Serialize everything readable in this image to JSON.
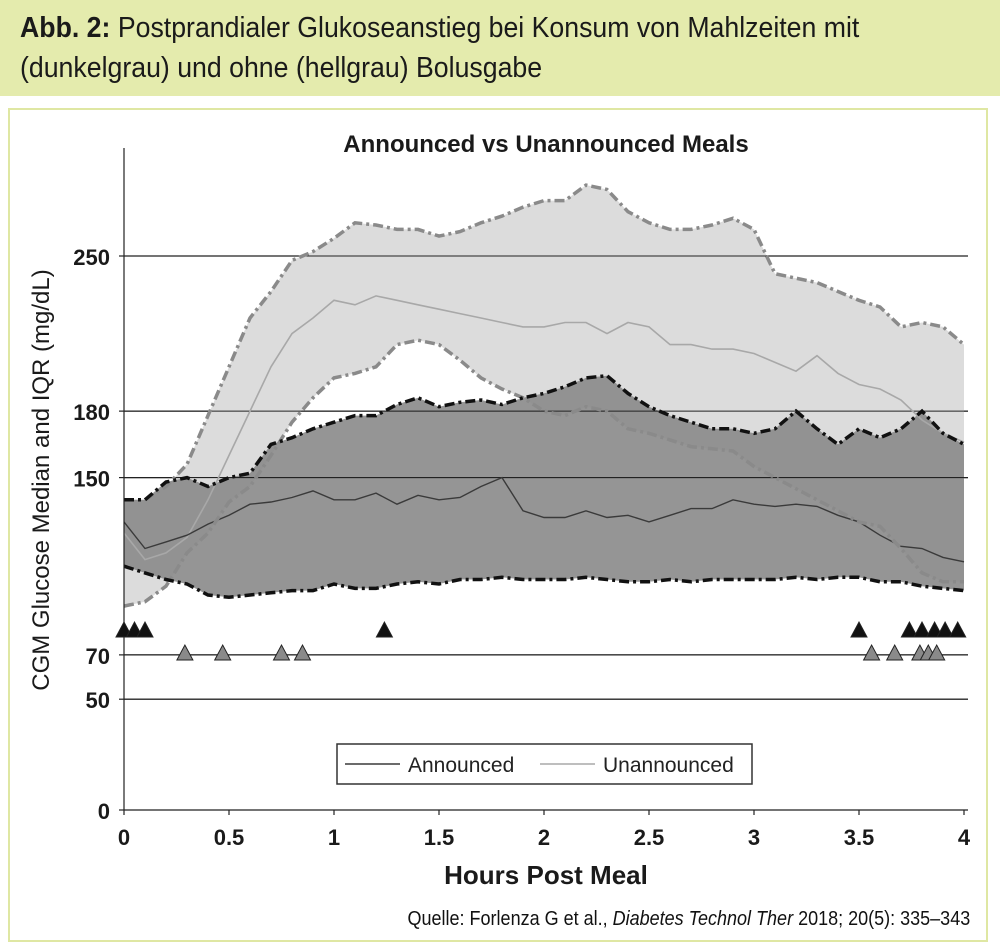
{
  "caption": {
    "label": "Abb. 2:",
    "text": " Postprandialer Glukoseanstieg bei Konsum von Mahlzeiten mit",
    "line2": "(dunkelgrau) und ohne (hellgrau) Bolusgabe"
  },
  "source": {
    "prefix": "Quelle: Forlenza G et al., ",
    "journal": "Diabetes Technol Ther",
    "suffix": " 2018; 20(5): 335–343"
  },
  "colors": {
    "header_bg": "#e4ebad",
    "announced_fill": "#8a8a8a",
    "unannounced_fill": "#dcdcdc",
    "announced_line": "#3a3a3a",
    "unannounced_line": "#a8a8a8"
  },
  "chart_data": {
    "type": "area",
    "title": "Announced vs Unannounced Meals",
    "xlabel": "Hours Post Meal",
    "ylabel": "CGM Glucose Median and IQR (mg/dL)",
    "xlim": [
      0,
      4
    ],
    "ylim": [
      0,
      300
    ],
    "xticks": [
      0,
      0.5,
      1,
      1.5,
      2,
      2.5,
      3,
      3.5,
      4
    ],
    "xtick_labels": [
      "0",
      "0.5",
      "1",
      "1.5",
      "2",
      "2.5",
      "3",
      "3.5",
      "4"
    ],
    "yticks": [
      0,
      50,
      70,
      150,
      180,
      250
    ],
    "ytick_labels": [
      "0",
      "50",
      "70",
      "150",
      "180",
      "250"
    ],
    "grid": "horizontal at y ticks",
    "legend": "bottom-center",
    "x": [
      0,
      0.1,
      0.2,
      0.3,
      0.4,
      0.5,
      0.6,
      0.7,
      0.8,
      0.9,
      1.0,
      1.1,
      1.2,
      1.3,
      1.4,
      1.5,
      1.6,
      1.7,
      1.8,
      1.9,
      2.0,
      2.1,
      2.2,
      2.3,
      2.4,
      2.5,
      2.6,
      2.7,
      2.8,
      2.9,
      3.0,
      3.1,
      3.2,
      3.3,
      3.4,
      3.5,
      3.6,
      3.7,
      3.8,
      3.9,
      4.0
    ],
    "series": [
      {
        "name": "Announced",
        "median": [
          130,
          118,
          121,
          124,
          129,
          133,
          138,
          139,
          141,
          144,
          140,
          140,
          143,
          138,
          142,
          140,
          141,
          146,
          150,
          135,
          132,
          132,
          135,
          132,
          133,
          130,
          133,
          136,
          136,
          140,
          138,
          137,
          138,
          137,
          133,
          130,
          124,
          119,
          118,
          114,
          112
        ],
        "q1": [
          110,
          107,
          104,
          102,
          97,
          96,
          97,
          98,
          99,
          99,
          102,
          100,
          100,
          102,
          103,
          102,
          104,
          104,
          105,
          104,
          104,
          104,
          105,
          104,
          103,
          103,
          104,
          103,
          104,
          104,
          104,
          104,
          105,
          104,
          105,
          105,
          103,
          103,
          101,
          100,
          99
        ],
        "q3": [
          140,
          140,
          148,
          150,
          146,
          150,
          152,
          165,
          168,
          172,
          175,
          178,
          178,
          183,
          186,
          182,
          184,
          185,
          183,
          186,
          188,
          191,
          195,
          196,
          188,
          182,
          178,
          175,
          172,
          172,
          170,
          172,
          180,
          172,
          165,
          172,
          168,
          172,
          180,
          170,
          165
        ]
      },
      {
        "name": "Unannounced",
        "median": [
          125,
          113,
          116,
          123,
          140,
          160,
          180,
          200,
          215,
          222,
          230,
          228,
          232,
          230,
          228,
          226,
          224,
          222,
          220,
          218,
          218,
          220,
          220,
          215,
          220,
          218,
          210,
          210,
          208,
          208,
          206,
          202,
          198,
          205,
          197,
          192,
          190,
          185,
          176,
          170,
          166
        ],
        "q1": [
          92,
          94,
          101,
          116,
          125,
          139,
          146,
          160,
          175,
          186,
          195,
          197,
          200,
          210,
          212,
          210,
          203,
          195,
          190,
          186,
          180,
          178,
          182,
          180,
          172,
          170,
          167,
          164,
          163,
          162,
          155,
          150,
          145,
          140,
          135,
          130,
          128,
          118,
          107,
          103,
          103
        ],
        "q3": [
          140,
          140,
          146,
          156,
          178,
          200,
          222,
          234,
          248,
          252,
          258,
          265,
          264,
          262,
          262,
          259,
          261,
          265,
          268,
          272,
          275,
          275,
          282,
          280,
          270,
          265,
          262,
          262,
          264,
          267,
          262,
          242,
          240,
          238,
          234,
          230,
          227,
          218,
          220,
          218,
          210
        ]
      }
    ],
    "markers": {
      "announced_hypo_x": [
        0,
        0.05,
        0.1,
        1.24,
        3.5,
        3.74,
        3.8,
        3.86,
        3.91,
        3.97
      ],
      "unannounced_hypo_x": [
        0.29,
        0.47,
        0.75,
        0.85,
        3.56,
        3.67,
        3.79,
        3.83,
        3.87
      ]
    }
  }
}
